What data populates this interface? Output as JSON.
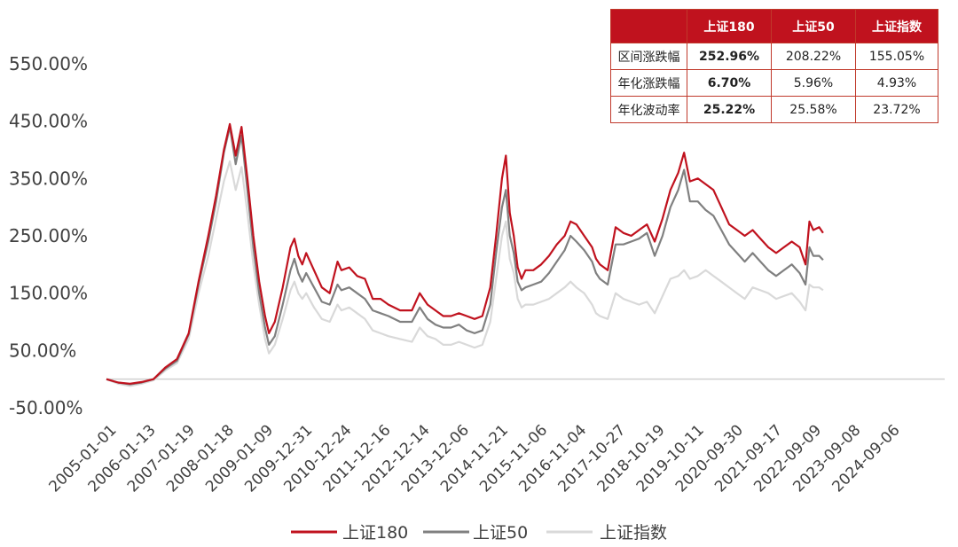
{
  "chart_data": {
    "type": "line",
    "yticks": [
      "550.00%",
      "450.00%",
      "350.00%",
      "250.00%",
      "150.00%",
      "50.00%",
      "-50.00%"
    ],
    "ytick_values": [
      550,
      450,
      350,
      250,
      150,
      50,
      -50
    ],
    "ylim": [
      -50,
      550
    ],
    "xticks": [
      "2005-01-01",
      "2006-01-13",
      "2007-01-19",
      "2008-01-18",
      "2009-01-09",
      "2009-12-31",
      "2010-12-24",
      "2011-12-16",
      "2012-12-14",
      "2013-12-06",
      "2014-11-21",
      "2015-11-06",
      "2016-11-04",
      "2017-10-27",
      "2018-10-19",
      "2019-10-11",
      "2020-09-30",
      "2021-09-17",
      "2022-09-09",
      "2023-09-08",
      "2024-09-06"
    ],
    "legend_position": "bottom",
    "grid": false,
    "series": [
      {
        "name": "上证180",
        "color": "#c0121e",
        "values": [
          [
            0,
            0
          ],
          [
            0.3,
            -6
          ],
          [
            0.6,
            -8
          ],
          [
            0.9,
            -5
          ],
          [
            1.2,
            0
          ],
          [
            1.5,
            20
          ],
          [
            1.8,
            35
          ],
          [
            2.1,
            80
          ],
          [
            2.35,
            170
          ],
          [
            2.6,
            250
          ],
          [
            2.8,
            320
          ],
          [
            3.0,
            400
          ],
          [
            3.15,
            445
          ],
          [
            3.3,
            390
          ],
          [
            3.45,
            440
          ],
          [
            3.6,
            350
          ],
          [
            3.75,
            250
          ],
          [
            3.9,
            170
          ],
          [
            4.05,
            110
          ],
          [
            4.15,
            80
          ],
          [
            4.3,
            100
          ],
          [
            4.5,
            160
          ],
          [
            4.7,
            230
          ],
          [
            4.8,
            245
          ],
          [
            4.9,
            215
          ],
          [
            5.0,
            200
          ],
          [
            5.1,
            220
          ],
          [
            5.3,
            190
          ],
          [
            5.5,
            160
          ],
          [
            5.7,
            150
          ],
          [
            5.9,
            205
          ],
          [
            6.0,
            190
          ],
          [
            6.2,
            195
          ],
          [
            6.4,
            180
          ],
          [
            6.6,
            175
          ],
          [
            6.8,
            140
          ],
          [
            7.0,
            140
          ],
          [
            7.2,
            130
          ],
          [
            7.5,
            120
          ],
          [
            7.8,
            120
          ],
          [
            8.0,
            150
          ],
          [
            8.2,
            130
          ],
          [
            8.4,
            120
          ],
          [
            8.6,
            110
          ],
          [
            8.8,
            110
          ],
          [
            9.0,
            115
          ],
          [
            9.2,
            110
          ],
          [
            9.4,
            105
          ],
          [
            9.6,
            110
          ],
          [
            9.8,
            160
          ],
          [
            9.95,
            250
          ],
          [
            10.1,
            350
          ],
          [
            10.2,
            390
          ],
          [
            10.3,
            290
          ],
          [
            10.4,
            250
          ],
          [
            10.5,
            195
          ],
          [
            10.6,
            175
          ],
          [
            10.7,
            190
          ],
          [
            10.9,
            190
          ],
          [
            11.1,
            200
          ],
          [
            11.3,
            215
          ],
          [
            11.5,
            235
          ],
          [
            11.7,
            250
          ],
          [
            11.85,
            275
          ],
          [
            12.0,
            270
          ],
          [
            12.2,
            250
          ],
          [
            12.4,
            230
          ],
          [
            12.5,
            210
          ],
          [
            12.6,
            200
          ],
          [
            12.8,
            190
          ],
          [
            13.0,
            265
          ],
          [
            13.2,
            255
          ],
          [
            13.4,
            250
          ],
          [
            13.6,
            260
          ],
          [
            13.8,
            270
          ],
          [
            14.0,
            240
          ],
          [
            14.2,
            280
          ],
          [
            14.4,
            330
          ],
          [
            14.6,
            360
          ],
          [
            14.75,
            395
          ],
          [
            14.9,
            345
          ],
          [
            15.1,
            350
          ],
          [
            15.3,
            340
          ],
          [
            15.5,
            330
          ],
          [
            15.7,
            300
          ],
          [
            15.9,
            270
          ],
          [
            16.1,
            260
          ],
          [
            16.3,
            250
          ],
          [
            16.5,
            260
          ],
          [
            16.7,
            245
          ],
          [
            16.9,
            230
          ],
          [
            17.1,
            220
          ],
          [
            17.3,
            230
          ],
          [
            17.5,
            240
          ],
          [
            17.7,
            230
          ],
          [
            17.85,
            200
          ],
          [
            17.95,
            275
          ],
          [
            18.05,
            260
          ],
          [
            18.2,
            265
          ],
          [
            18.3,
            255
          ]
        ]
      },
      {
        "name": "上证50",
        "color": "#808080",
        "values": [
          [
            0,
            0
          ],
          [
            0.3,
            -6
          ],
          [
            0.6,
            -9
          ],
          [
            0.9,
            -6
          ],
          [
            1.2,
            0
          ],
          [
            1.5,
            18
          ],
          [
            1.8,
            32
          ],
          [
            2.1,
            78
          ],
          [
            2.35,
            165
          ],
          [
            2.6,
            240
          ],
          [
            2.8,
            310
          ],
          [
            3.0,
            395
          ],
          [
            3.15,
            440
          ],
          [
            3.3,
            375
          ],
          [
            3.45,
            425
          ],
          [
            3.6,
            330
          ],
          [
            3.75,
            230
          ],
          [
            3.9,
            150
          ],
          [
            4.05,
            90
          ],
          [
            4.15,
            60
          ],
          [
            4.3,
            75
          ],
          [
            4.5,
            130
          ],
          [
            4.7,
            190
          ],
          [
            4.8,
            210
          ],
          [
            4.9,
            185
          ],
          [
            5.0,
            170
          ],
          [
            5.1,
            185
          ],
          [
            5.3,
            160
          ],
          [
            5.5,
            135
          ],
          [
            5.7,
            130
          ],
          [
            5.9,
            165
          ],
          [
            6.0,
            155
          ],
          [
            6.2,
            160
          ],
          [
            6.4,
            150
          ],
          [
            6.6,
            140
          ],
          [
            6.8,
            120
          ],
          [
            7.0,
            115
          ],
          [
            7.2,
            110
          ],
          [
            7.5,
            100
          ],
          [
            7.8,
            100
          ],
          [
            8.0,
            125
          ],
          [
            8.2,
            105
          ],
          [
            8.4,
            95
          ],
          [
            8.6,
            90
          ],
          [
            8.8,
            90
          ],
          [
            9.0,
            95
          ],
          [
            9.2,
            85
          ],
          [
            9.4,
            80
          ],
          [
            9.6,
            85
          ],
          [
            9.8,
            130
          ],
          [
            9.95,
            220
          ],
          [
            10.1,
            300
          ],
          [
            10.2,
            330
          ],
          [
            10.3,
            250
          ],
          [
            10.4,
            220
          ],
          [
            10.5,
            170
          ],
          [
            10.6,
            155
          ],
          [
            10.7,
            160
          ],
          [
            10.9,
            165
          ],
          [
            11.1,
            170
          ],
          [
            11.3,
            185
          ],
          [
            11.5,
            205
          ],
          [
            11.7,
            225
          ],
          [
            11.85,
            250
          ],
          [
            12.0,
            240
          ],
          [
            12.2,
            225
          ],
          [
            12.4,
            205
          ],
          [
            12.5,
            185
          ],
          [
            12.6,
            175
          ],
          [
            12.8,
            165
          ],
          [
            13.0,
            235
          ],
          [
            13.2,
            235
          ],
          [
            13.4,
            240
          ],
          [
            13.6,
            245
          ],
          [
            13.8,
            255
          ],
          [
            14.0,
            215
          ],
          [
            14.2,
            250
          ],
          [
            14.4,
            300
          ],
          [
            14.6,
            330
          ],
          [
            14.75,
            365
          ],
          [
            14.9,
            310
          ],
          [
            15.1,
            310
          ],
          [
            15.3,
            295
          ],
          [
            15.5,
            285
          ],
          [
            15.7,
            260
          ],
          [
            15.9,
            235
          ],
          [
            16.1,
            220
          ],
          [
            16.3,
            205
          ],
          [
            16.5,
            220
          ],
          [
            16.7,
            205
          ],
          [
            16.9,
            190
          ],
          [
            17.1,
            180
          ],
          [
            17.3,
            190
          ],
          [
            17.5,
            200
          ],
          [
            17.7,
            185
          ],
          [
            17.85,
            165
          ],
          [
            17.95,
            230
          ],
          [
            18.05,
            215
          ],
          [
            18.2,
            215
          ],
          [
            18.3,
            208
          ]
        ]
      },
      {
        "name": "上证指数",
        "color": "#d9d9d9",
        "values": [
          [
            0,
            0
          ],
          [
            0.3,
            -8
          ],
          [
            0.6,
            -12
          ],
          [
            0.9,
            -8
          ],
          [
            1.2,
            -2
          ],
          [
            1.5,
            15
          ],
          [
            1.8,
            28
          ],
          [
            2.1,
            70
          ],
          [
            2.35,
            150
          ],
          [
            2.6,
            215
          ],
          [
            2.8,
            280
          ],
          [
            3.0,
            345
          ],
          [
            3.15,
            380
          ],
          [
            3.3,
            330
          ],
          [
            3.45,
            370
          ],
          [
            3.6,
            290
          ],
          [
            3.75,
            200
          ],
          [
            3.9,
            130
          ],
          [
            4.05,
            70
          ],
          [
            4.15,
            45
          ],
          [
            4.3,
            60
          ],
          [
            4.5,
            105
          ],
          [
            4.7,
            155
          ],
          [
            4.8,
            170
          ],
          [
            4.9,
            150
          ],
          [
            5.0,
            140
          ],
          [
            5.1,
            150
          ],
          [
            5.3,
            125
          ],
          [
            5.5,
            105
          ],
          [
            5.7,
            100
          ],
          [
            5.9,
            130
          ],
          [
            6.0,
            120
          ],
          [
            6.2,
            125
          ],
          [
            6.4,
            115
          ],
          [
            6.6,
            105
          ],
          [
            6.8,
            85
          ],
          [
            7.0,
            80
          ],
          [
            7.2,
            75
          ],
          [
            7.5,
            70
          ],
          [
            7.8,
            65
          ],
          [
            8.0,
            90
          ],
          [
            8.2,
            75
          ],
          [
            8.4,
            70
          ],
          [
            8.6,
            60
          ],
          [
            8.8,
            60
          ],
          [
            9.0,
            65
          ],
          [
            9.2,
            60
          ],
          [
            9.4,
            55
          ],
          [
            9.6,
            60
          ],
          [
            9.8,
            100
          ],
          [
            9.95,
            175
          ],
          [
            10.1,
            250
          ],
          [
            10.2,
            275
          ],
          [
            10.3,
            210
          ],
          [
            10.4,
            185
          ],
          [
            10.5,
            140
          ],
          [
            10.6,
            125
          ],
          [
            10.7,
            130
          ],
          [
            10.9,
            130
          ],
          [
            11.1,
            135
          ],
          [
            11.3,
            140
          ],
          [
            11.5,
            150
          ],
          [
            11.7,
            160
          ],
          [
            11.85,
            170
          ],
          [
            12.0,
            160
          ],
          [
            12.2,
            150
          ],
          [
            12.4,
            130
          ],
          [
            12.5,
            115
          ],
          [
            12.6,
            110
          ],
          [
            12.8,
            105
          ],
          [
            13.0,
            150
          ],
          [
            13.2,
            140
          ],
          [
            13.4,
            135
          ],
          [
            13.6,
            130
          ],
          [
            13.8,
            135
          ],
          [
            14.0,
            115
          ],
          [
            14.2,
            145
          ],
          [
            14.4,
            175
          ],
          [
            14.6,
            180
          ],
          [
            14.75,
            190
          ],
          [
            14.9,
            175
          ],
          [
            15.1,
            180
          ],
          [
            15.3,
            190
          ],
          [
            15.5,
            180
          ],
          [
            15.7,
            170
          ],
          [
            15.9,
            160
          ],
          [
            16.1,
            150
          ],
          [
            16.3,
            140
          ],
          [
            16.5,
            160
          ],
          [
            16.7,
            155
          ],
          [
            16.9,
            150
          ],
          [
            17.1,
            140
          ],
          [
            17.3,
            145
          ],
          [
            17.5,
            150
          ],
          [
            17.7,
            135
          ],
          [
            17.85,
            120
          ],
          [
            17.95,
            165
          ],
          [
            18.05,
            160
          ],
          [
            18.2,
            160
          ],
          [
            18.3,
            155
          ]
        ]
      }
    ],
    "table": {
      "columns": [
        "上证180",
        "上证50",
        "上证指数"
      ],
      "rows": [
        {
          "label": "区间涨跌幅",
          "values": [
            "252.96%",
            "208.22%",
            "155.05%"
          ]
        },
        {
          "label": "年化涨跌幅",
          "values": [
            "6.70%",
            "5.96%",
            "4.93%"
          ]
        },
        {
          "label": "年化波动率",
          "values": [
            "25.22%",
            "25.58%",
            "23.72%"
          ]
        }
      ]
    }
  }
}
